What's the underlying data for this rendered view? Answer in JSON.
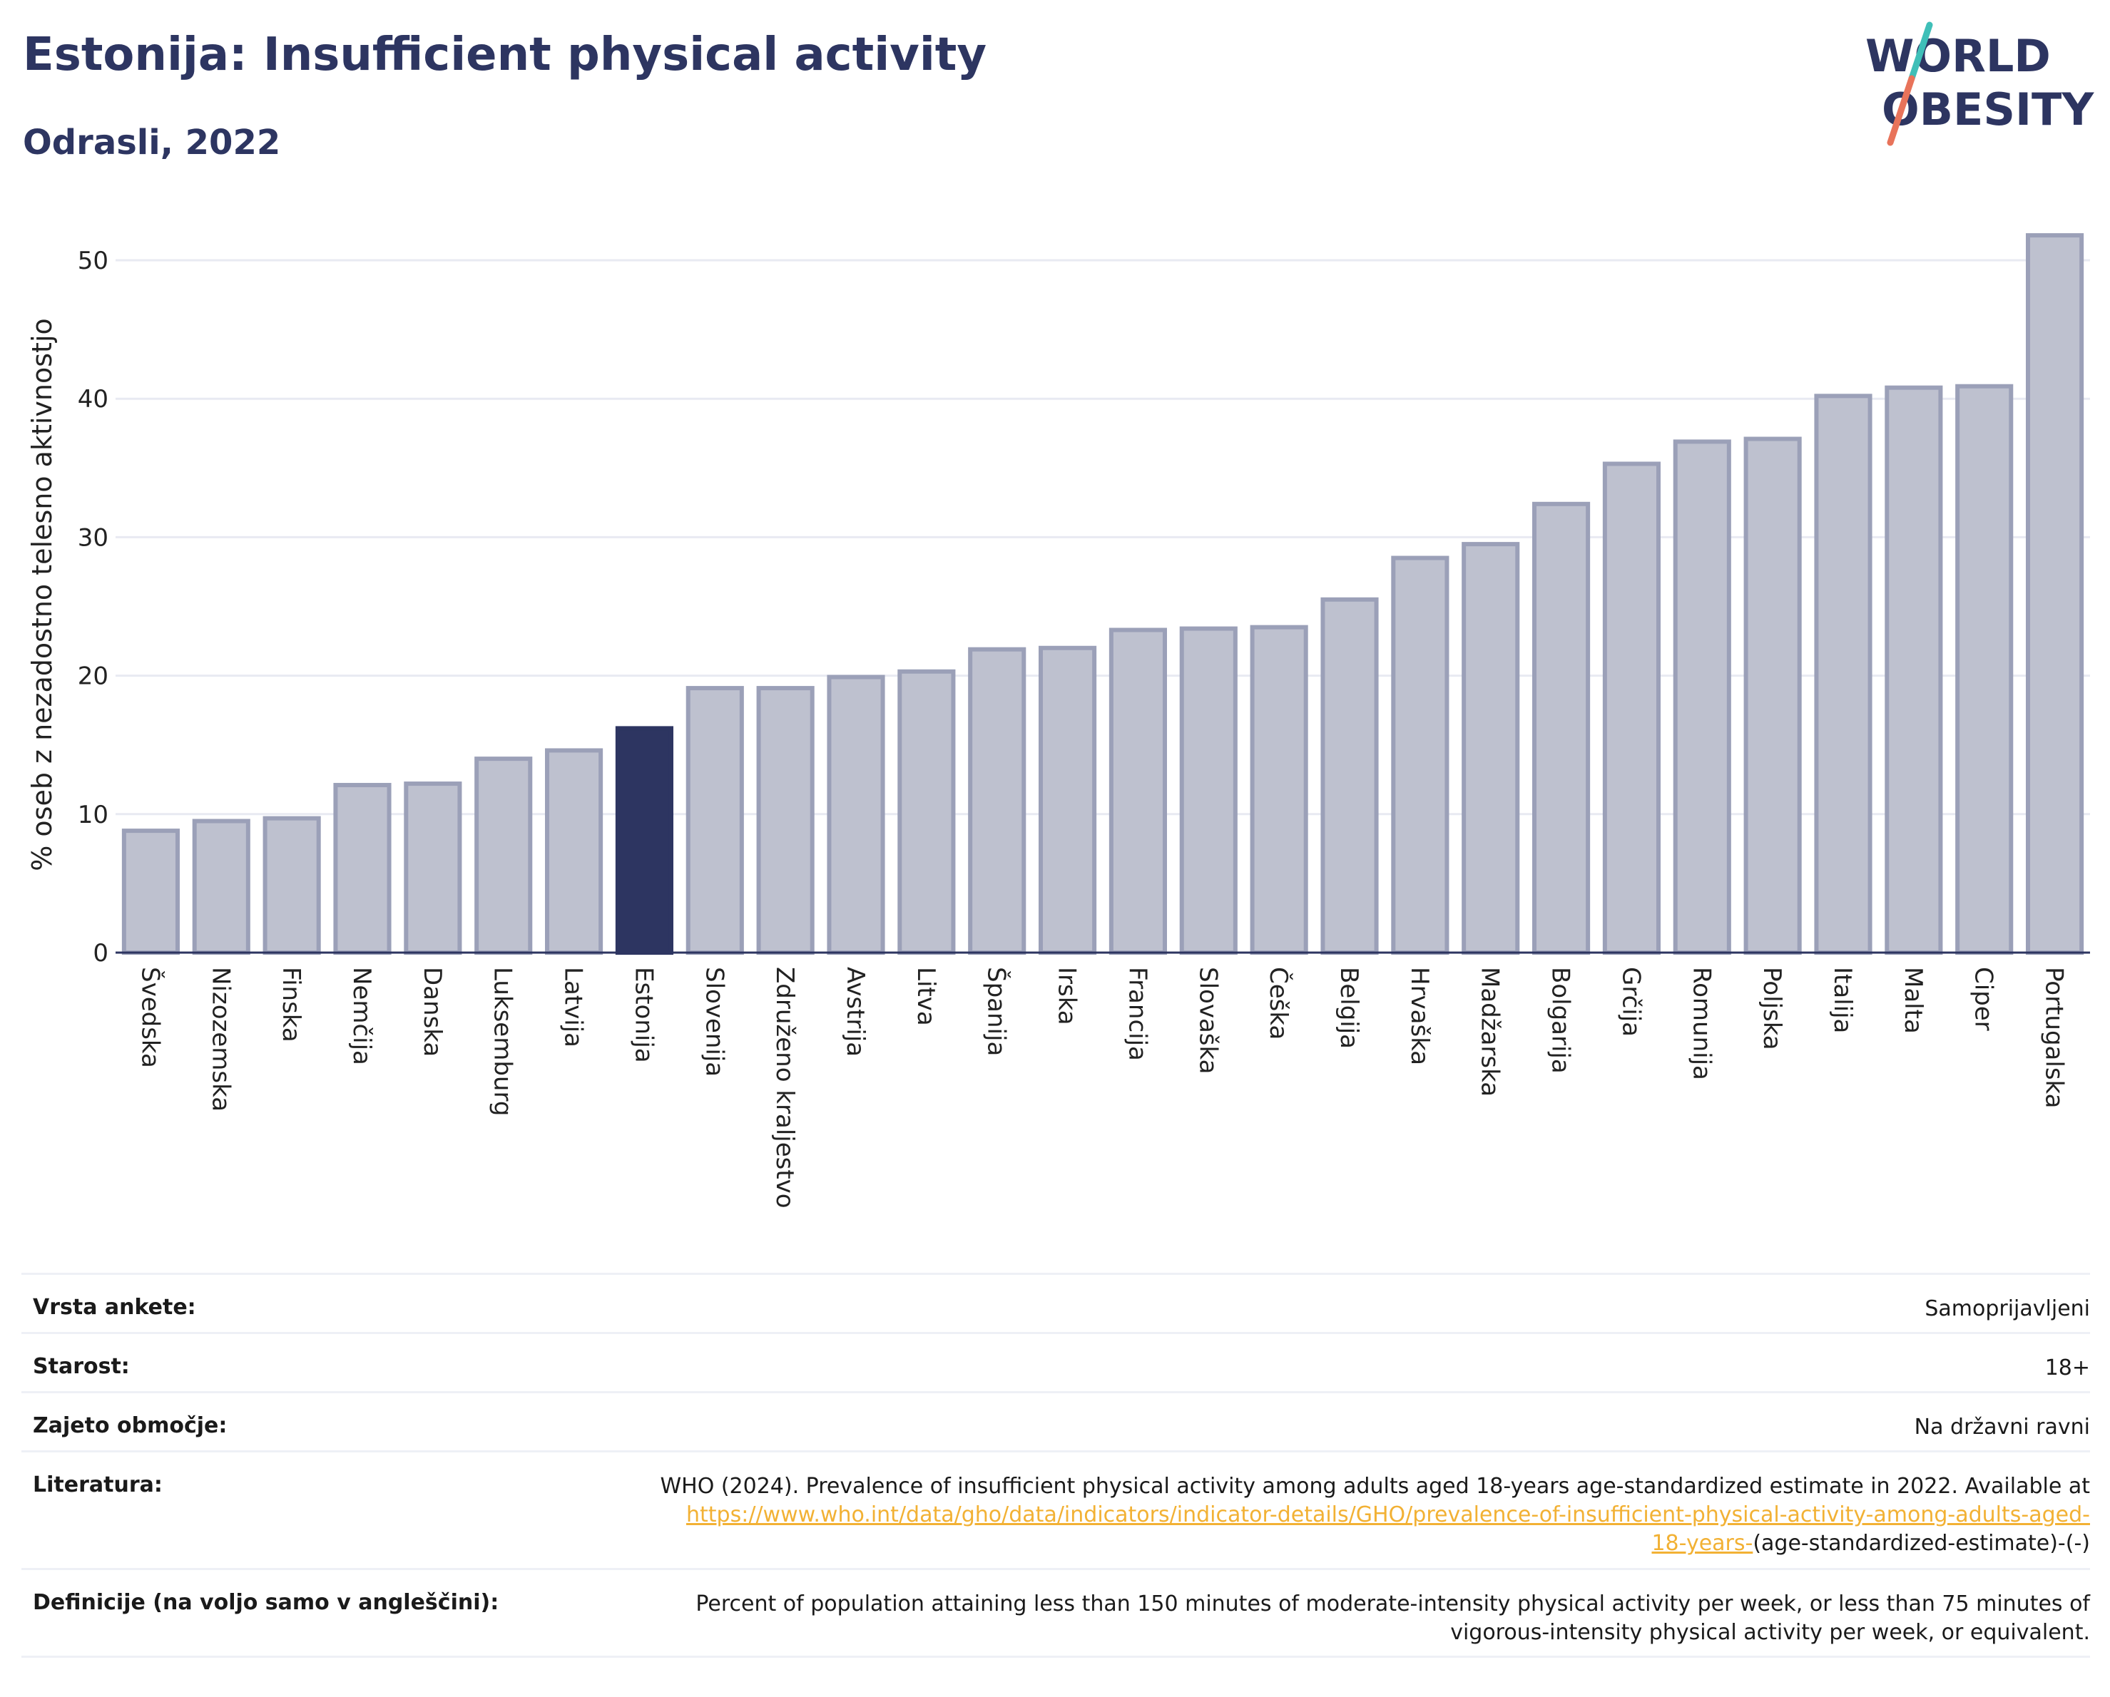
{
  "header": {
    "title": "Estonija: Insufficient physical activity",
    "subtitle": "Odrasli, 2022"
  },
  "logo": {
    "line1": "WORLD",
    "line2": "OBESITY",
    "text_color": "#2d3561",
    "slash_colors": [
      "#3fbfb8",
      "#e8735a"
    ]
  },
  "colors": {
    "bar_default": "#bec1cf",
    "bar_default_stroke": "#9ba0b8",
    "bar_highlight": "#2d3561",
    "grid": "#e8eaf2",
    "axis": "#2d3561",
    "link": "#f2b134"
  },
  "chart_data": {
    "type": "bar",
    "ylabel": "% oseb z nezadostno telesno aktivnostjo",
    "ylim": [
      0,
      52
    ],
    "yticks": [
      0,
      10,
      20,
      30,
      40,
      50
    ],
    "grid": true,
    "highlight": "Estonija",
    "categories": [
      "Švedska",
      "Nizozemska",
      "Finska",
      "Nemčija",
      "Danska",
      "Luksemburg",
      "Latvija",
      "Estonija",
      "Slovenija",
      "Združeno kraljestvo",
      "Avstrija",
      "Litva",
      "Španija",
      "Irska",
      "Francija",
      "Slovaška",
      "Češka",
      "Belgija",
      "Hrvaška",
      "Madžarska",
      "Bolgarija",
      "Grčija",
      "Romunija",
      "Poljska",
      "Italija",
      "Malta",
      "Ciper",
      "Portugalska"
    ],
    "values": [
      8.8,
      9.5,
      9.7,
      12.1,
      12.2,
      14.0,
      14.6,
      16.2,
      19.1,
      19.1,
      19.9,
      20.3,
      21.9,
      22.0,
      23.3,
      23.4,
      23.5,
      25.5,
      28.5,
      29.5,
      32.4,
      35.3,
      36.9,
      37.1,
      40.2,
      40.8,
      40.9,
      51.8
    ]
  },
  "info": {
    "survey_label": "Vrsta ankete:",
    "survey_value": "Samoprijavljeni",
    "age_label": "Starost:",
    "age_value": "18+",
    "coverage_label": "Zajeto območje:",
    "coverage_value": "Na državni ravni",
    "reference_label": "Literatura:",
    "reference_text": "WHO (2024). Prevalence of insufficient physical activity among adults aged 18-years age-standardized estimate in 2022. Available at",
    "reference_link_line1": "https://www.who.int/data/gho/data/indicators/indicator-details/GHO/prevalence-of-insufficient-physical-activity-among-adults-aged-",
    "reference_link_line2": "18-years-",
    "reference_suffix": "(age-standardized-estimate)-(-)",
    "definition_label": "Definicije (na voljo samo v angleščini):",
    "definition_line1": "Percent of population attaining less than 150 minutes of moderate-intensity physical activity per week, or less than 75 minutes of",
    "definition_line2": "vigorous-intensity physical activity per week, or equivalent."
  }
}
